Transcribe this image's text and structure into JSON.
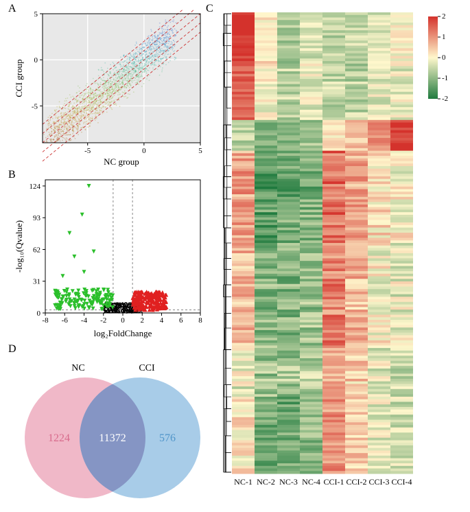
{
  "panelA": {
    "label": "A",
    "type": "scatter",
    "xlabel": "NC group",
    "ylabel": "CCI group",
    "xlim": [
      -9,
      5
    ],
    "ylim": [
      -9,
      5
    ],
    "xticks": [
      -5,
      0,
      5
    ],
    "yticks": [
      -5,
      0,
      5
    ],
    "background": "#e8e8e8",
    "grid_color": "#ffffff",
    "diag_color": "#cc3333",
    "diag_dash": "4,3",
    "diag_offsets": [
      -2,
      -1,
      0,
      1,
      2
    ],
    "point_alpha": 0.35,
    "color_stops": [
      "#a86b2e",
      "#c7a23c",
      "#8fbf4d",
      "#4bbfa8",
      "#3f8fd6",
      "#5460d0"
    ]
  },
  "panelB": {
    "label": "B",
    "type": "volcano",
    "xlabel": "log₂FoldChange",
    "ylabel": "-log₁₀(Qvalue)",
    "xlim": [
      -8,
      8
    ],
    "ylim": [
      0,
      130
    ],
    "xticks": [
      -8,
      -6,
      -4,
      -2,
      0,
      2,
      4,
      6,
      8
    ],
    "yticks": [
      0,
      31,
      62,
      93,
      124
    ],
    "ns_color": "#000000",
    "down_color": "#2bbf2b",
    "up_color": "#e02020",
    "vline_x": [
      -1,
      1
    ],
    "hline_y": 3,
    "guide_color": "#888888",
    "guide_dash": "3,3"
  },
  "panelC": {
    "label": "C",
    "type": "heatmap",
    "columns": [
      "NC-1",
      "NC-2",
      "NC-3",
      "NC-4",
      "CCI-1",
      "CCI-2",
      "CCI-3",
      "CCI-4"
    ],
    "rows": 180,
    "colorbar": {
      "min": -2,
      "max": 2,
      "ticks": [
        -2,
        -1,
        0,
        1,
        2
      ],
      "low": "#1f7a3e",
      "mid": "#fff7cc",
      "high": "#d4322c"
    },
    "dendro_color": "#000000",
    "dendro_width": 0.6
  },
  "panelD": {
    "label": "D",
    "type": "venn",
    "set1": {
      "name": "NC",
      "only": 1224,
      "color": "#f0b8c8",
      "text_color": "#d86b8c"
    },
    "set2": {
      "name": "CCI",
      "only": 576,
      "color": "#a8cce8",
      "text_color": "#4f95c9"
    },
    "both": 11372,
    "both_color": "#8595c4",
    "both_text_color": "#ffffff",
    "label_color": "#000000",
    "label_fontsize": 14,
    "value_fontsize": 16
  }
}
